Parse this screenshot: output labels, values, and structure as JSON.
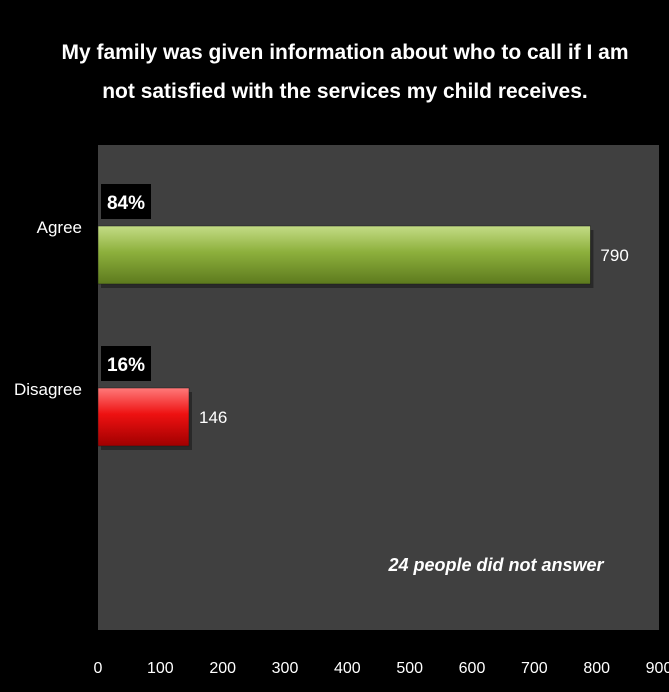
{
  "colors": {
    "background": "#000000",
    "plot_area": "#404040",
    "agree_bar": "#8db03c",
    "disagree_bar": "#ee1111",
    "text": "#ffffff"
  },
  "chart_data": {
    "type": "bar",
    "orientation": "horizontal",
    "title": [
      "My family was given information about who to call if I am",
      "not satisfied with the services my child receives."
    ],
    "categories": [
      "Agree",
      "Disagree"
    ],
    "values": [
      790,
      146
    ],
    "value_labels": [
      "790",
      "146"
    ],
    "percent_labels": [
      "84%",
      "16%"
    ],
    "bar_colors": [
      "#8db03c",
      "#ee1111"
    ],
    "xlim": [
      0,
      900
    ],
    "x_ticks": [
      0,
      100,
      200,
      300,
      400,
      500,
      600,
      700,
      800,
      900
    ],
    "x_tick_labels": [
      "0",
      "100",
      "200",
      "300",
      "400",
      "500",
      "600",
      "700",
      "800",
      "900"
    ],
    "xlabel": "",
    "ylabel": "",
    "grid": false,
    "legend": "none",
    "annotation": "24 people did not answer"
  }
}
